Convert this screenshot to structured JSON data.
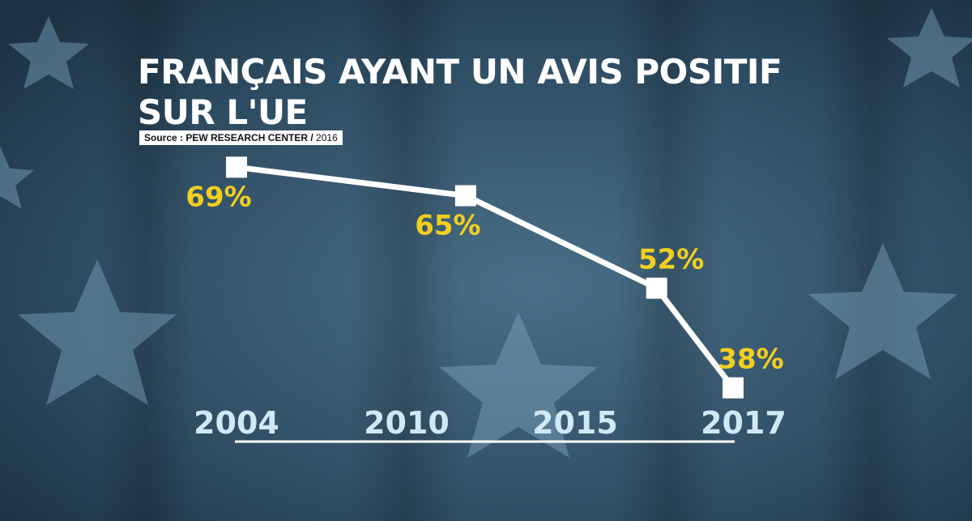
{
  "title_lines": [
    "FRANÇAIS AYANT UN AVIS POSITIF",
    "SUR L'UE"
  ],
  "source": {
    "label": "Source : PEW RESEARCH CENTER",
    "separator": " / ",
    "year": "2016"
  },
  "colors": {
    "background": "#2f4f66",
    "line": "#ffffff",
    "value_label": "#f2cf1f",
    "year_label": "#cfe9f7",
    "star": "#7fa6bf"
  },
  "chart_data": {
    "type": "line",
    "categories": [
      "2004",
      "2010",
      "2015",
      "2017"
    ],
    "values": [
      69,
      65,
      52,
      38
    ],
    "value_labels": [
      "69%",
      "65%",
      "52%",
      "38%"
    ],
    "title": "FRANÇAIS AYANT UN AVIS POSITIF SUR L'UE",
    "xlabel": "",
    "ylabel": "",
    "ylim": [
      35,
      72
    ],
    "grid": false,
    "legend": false,
    "marker": "square"
  }
}
